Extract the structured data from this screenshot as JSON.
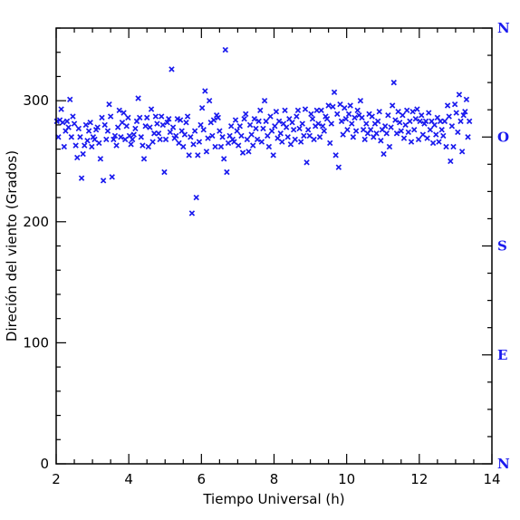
{
  "chart_data": {
    "type": "scatter",
    "title": "",
    "xlabel": "Tiempo Universal (h)",
    "ylabel": "Direción del viento (Grados)",
    "xlim": [
      2,
      14
    ],
    "ylim": [
      0,
      360
    ],
    "x_ticks": [
      2,
      4,
      6,
      8,
      10,
      12,
      14
    ],
    "y_ticks": [
      0,
      100,
      200,
      300
    ],
    "right_axis_labels": [
      {
        "value": 360,
        "label": "N"
      },
      {
        "value": 270,
        "label": "O"
      },
      {
        "value": 180,
        "label": "S"
      },
      {
        "value": 90,
        "label": "E"
      },
      {
        "value": 0,
        "label": "N"
      }
    ],
    "grid": false,
    "legend": "none",
    "marker": "x",
    "colors": {
      "points": "#1a1aee",
      "right_axis": "#1a1aee",
      "axes": "#000000"
    },
    "series": [
      {
        "points": [
          [
            2.02,
            283
          ],
          [
            2.06,
            270
          ],
          [
            2.1,
            284
          ],
          [
            2.14,
            293
          ],
          [
            2.18,
            282
          ],
          [
            2.22,
            262
          ],
          [
            2.26,
            275
          ],
          [
            2.3,
            283
          ],
          [
            2.34,
            278
          ],
          [
            2.38,
            301
          ],
          [
            2.42,
            270
          ],
          [
            2.46,
            287
          ],
          [
            2.5,
            281
          ],
          [
            2.54,
            263
          ],
          [
            2.58,
            253
          ],
          [
            2.62,
            277
          ],
          [
            2.66,
            270
          ],
          [
            2.7,
            236
          ],
          [
            2.74,
            256
          ],
          [
            2.78,
            263
          ],
          [
            2.82,
            280
          ],
          [
            2.86,
            267
          ],
          [
            2.9,
            275
          ],
          [
            2.94,
            282
          ],
          [
            2.98,
            262
          ],
          [
            3.02,
            270
          ],
          [
            3.06,
            268
          ],
          [
            3.1,
            276
          ],
          [
            3.14,
            278
          ],
          [
            3.18,
            265
          ],
          [
            3.22,
            252
          ],
          [
            3.26,
            286
          ],
          [
            3.3,
            234
          ],
          [
            3.34,
            280
          ],
          [
            3.38,
            268
          ],
          [
            3.42,
            275
          ],
          [
            3.46,
            297
          ],
          [
            3.5,
            287
          ],
          [
            3.54,
            237
          ],
          [
            3.58,
            268
          ],
          [
            3.62,
            271
          ],
          [
            3.66,
            263
          ],
          [
            3.7,
            278
          ],
          [
            3.74,
            292
          ],
          [
            3.78,
            270
          ],
          [
            3.82,
            282
          ],
          [
            3.86,
            290
          ],
          [
            3.9,
            268
          ],
          [
            3.94,
            279
          ],
          [
            3.98,
            286
          ],
          [
            4.02,
            271
          ],
          [
            4.06,
            264
          ],
          [
            4.1,
            268
          ],
          [
            4.14,
            272
          ],
          [
            4.18,
            277
          ],
          [
            4.22,
            283
          ],
          [
            4.26,
            302
          ],
          [
            4.3,
            286
          ],
          [
            4.34,
            270
          ],
          [
            4.38,
            263
          ],
          [
            4.42,
            252
          ],
          [
            4.46,
            279
          ],
          [
            4.5,
            286
          ],
          [
            4.54,
            262
          ],
          [
            4.58,
            278
          ],
          [
            4.62,
            293
          ],
          [
            4.66,
            266
          ],
          [
            4.7,
            273
          ],
          [
            4.74,
            287
          ],
          [
            4.78,
            281
          ],
          [
            4.82,
            273
          ],
          [
            4.86,
            268
          ],
          [
            4.9,
            287
          ],
          [
            4.94,
            280
          ],
          [
            4.98,
            241
          ],
          [
            5.02,
            268
          ],
          [
            5.06,
            282
          ],
          [
            5.1,
            285
          ],
          [
            5.14,
            274
          ],
          [
            5.18,
            326
          ],
          [
            5.22,
            278
          ],
          [
            5.26,
            269
          ],
          [
            5.3,
            271
          ],
          [
            5.34,
            285
          ],
          [
            5.38,
            265
          ],
          [
            5.42,
            284
          ],
          [
            5.46,
            275
          ],
          [
            5.5,
            262
          ],
          [
            5.54,
            272
          ],
          [
            5.58,
            282
          ],
          [
            5.62,
            287
          ],
          [
            5.66,
            255
          ],
          [
            5.7,
            270
          ],
          [
            5.74,
            207
          ],
          [
            5.78,
            264
          ],
          [
            5.82,
            275
          ],
          [
            5.86,
            220
          ],
          [
            5.9,
            255
          ],
          [
            5.94,
            266
          ],
          [
            5.98,
            280
          ],
          [
            6.02,
            294
          ],
          [
            6.06,
            276
          ],
          [
            6.1,
            308
          ],
          [
            6.14,
            258
          ],
          [
            6.18,
            269
          ],
          [
            6.22,
            300
          ],
          [
            6.26,
            282
          ],
          [
            6.3,
            271
          ],
          [
            6.34,
            284
          ],
          [
            6.38,
            262
          ],
          [
            6.42,
            288
          ],
          [
            6.46,
            286
          ],
          [
            6.5,
            275
          ],
          [
            6.54,
            262
          ],
          [
            6.58,
            270
          ],
          [
            6.62,
            252
          ],
          [
            6.66,
            342
          ],
          [
            6.7,
            241
          ],
          [
            6.74,
            265
          ],
          [
            6.78,
            271
          ],
          [
            6.82,
            279
          ],
          [
            6.86,
            268
          ],
          [
            6.9,
            266
          ],
          [
            6.94,
            284
          ],
          [
            6.98,
            275
          ],
          [
            7.02,
            263
          ],
          [
            7.06,
            279
          ],
          [
            7.1,
            271
          ],
          [
            7.14,
            257
          ],
          [
            7.18,
            285
          ],
          [
            7.22,
            289
          ],
          [
            7.26,
            268
          ],
          [
            7.3,
            258
          ],
          [
            7.34,
            280
          ],
          [
            7.38,
            272
          ],
          [
            7.42,
            263
          ],
          [
            7.46,
            285
          ],
          [
            7.5,
            277
          ],
          [
            7.54,
            268
          ],
          [
            7.58,
            283
          ],
          [
            7.62,
            292
          ],
          [
            7.66,
            266
          ],
          [
            7.7,
            277
          ],
          [
            7.74,
            300
          ],
          [
            7.78,
            283
          ],
          [
            7.82,
            271
          ],
          [
            7.86,
            262
          ],
          [
            7.9,
            287
          ],
          [
            7.94,
            275
          ],
          [
            7.98,
            255
          ],
          [
            8.02,
            279
          ],
          [
            8.06,
            291
          ],
          [
            8.1,
            269
          ],
          [
            8.14,
            283
          ],
          [
            8.18,
            273
          ],
          [
            8.22,
            266
          ],
          [
            8.26,
            281
          ],
          [
            8.3,
            292
          ],
          [
            8.34,
            278
          ],
          [
            8.38,
            270
          ],
          [
            8.42,
            285
          ],
          [
            8.46,
            264
          ],
          [
            8.5,
            282
          ],
          [
            8.54,
            276
          ],
          [
            8.58,
            268
          ],
          [
            8.62,
            287
          ],
          [
            8.66,
            292
          ],
          [
            8.7,
            277
          ],
          [
            8.74,
            266
          ],
          [
            8.78,
            281
          ],
          [
            8.82,
            271
          ],
          [
            8.86,
            293
          ],
          [
            8.9,
            249
          ],
          [
            8.94,
            276
          ],
          [
            8.98,
            271
          ],
          [
            9.02,
            289
          ],
          [
            9.06,
            285
          ],
          [
            9.1,
            268
          ],
          [
            9.14,
            279
          ],
          [
            9.18,
            292
          ],
          [
            9.22,
            281
          ],
          [
            9.26,
            270
          ],
          [
            9.3,
            292
          ],
          [
            9.34,
            279
          ],
          [
            9.38,
            275
          ],
          [
            9.42,
            287
          ],
          [
            9.46,
            285
          ],
          [
            9.5,
            296
          ],
          [
            9.54,
            265
          ],
          [
            9.58,
            281
          ],
          [
            9.62,
            295
          ],
          [
            9.66,
            307
          ],
          [
            9.7,
            255
          ],
          [
            9.74,
            289
          ],
          [
            9.78,
            245
          ],
          [
            9.82,
            297
          ],
          [
            9.86,
            283
          ],
          [
            9.9,
            272
          ],
          [
            9.94,
            294
          ],
          [
            9.98,
            285
          ],
          [
            10.02,
            276
          ],
          [
            10.06,
            289
          ],
          [
            10.1,
            296
          ],
          [
            10.14,
            281
          ],
          [
            10.18,
            270
          ],
          [
            10.22,
            286
          ],
          [
            10.26,
            275
          ],
          [
            10.3,
            292
          ],
          [
            10.34,
            288
          ],
          [
            10.38,
            300
          ],
          [
            10.42,
            286
          ],
          [
            10.46,
            276
          ],
          [
            10.5,
            268
          ],
          [
            10.54,
            281
          ],
          [
            10.58,
            273
          ],
          [
            10.62,
            289
          ],
          [
            10.66,
            276
          ],
          [
            10.7,
            287
          ],
          [
            10.74,
            270
          ],
          [
            10.78,
            281
          ],
          [
            10.82,
            273
          ],
          [
            10.86,
            283
          ],
          [
            10.9,
            291
          ],
          [
            10.94,
            267
          ],
          [
            10.98,
            276
          ],
          [
            11.02,
            256
          ],
          [
            11.06,
            279
          ],
          [
            11.1,
            273
          ],
          [
            11.14,
            288
          ],
          [
            11.18,
            262
          ],
          [
            11.22,
            278
          ],
          [
            11.26,
            296
          ],
          [
            11.3,
            315
          ],
          [
            11.34,
            284
          ],
          [
            11.38,
            273
          ],
          [
            11.42,
            291
          ],
          [
            11.46,
            282
          ],
          [
            11.5,
            275
          ],
          [
            11.54,
            288
          ],
          [
            11.58,
            269
          ],
          [
            11.62,
            280
          ],
          [
            11.66,
            292
          ],
          [
            11.7,
            274
          ],
          [
            11.74,
            283
          ],
          [
            11.78,
            266
          ],
          [
            11.82,
            291
          ],
          [
            11.86,
            276
          ],
          [
            11.9,
            285
          ],
          [
            11.94,
            293
          ],
          [
            11.98,
            268
          ],
          [
            12.02,
            283
          ],
          [
            12.06,
            288
          ],
          [
            12.1,
            272
          ],
          [
            12.14,
            281
          ],
          [
            12.18,
            283
          ],
          [
            12.22,
            269
          ],
          [
            12.26,
            290
          ],
          [
            12.3,
            276
          ],
          [
            12.34,
            283
          ],
          [
            12.38,
            265
          ],
          [
            12.42,
            280
          ],
          [
            12.46,
            272
          ],
          [
            12.5,
            286
          ],
          [
            12.54,
            266
          ],
          [
            12.58,
            283
          ],
          [
            12.62,
            276
          ],
          [
            12.66,
            271
          ],
          [
            12.7,
            283
          ],
          [
            12.74,
            262
          ],
          [
            12.78,
            296
          ],
          [
            12.82,
            287
          ],
          [
            12.86,
            250
          ],
          [
            12.9,
            279
          ],
          [
            12.94,
            262
          ],
          [
            12.98,
            297
          ],
          [
            13.02,
            290
          ],
          [
            13.06,
            274
          ],
          [
            13.1,
            305
          ],
          [
            13.14,
            283
          ],
          [
            13.18,
            258
          ],
          [
            13.22,
            288
          ],
          [
            13.26,
            291
          ],
          [
            13.3,
            301
          ],
          [
            13.34,
            270
          ],
          [
            13.38,
            283
          ]
        ]
      }
    ]
  }
}
